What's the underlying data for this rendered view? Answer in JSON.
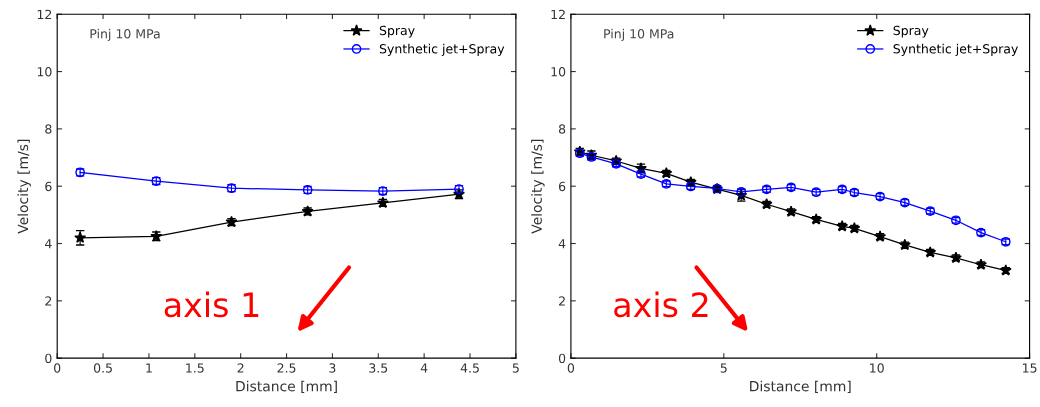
{
  "chart_data": [
    {
      "type": "line",
      "xlabel": "Distance [mm]",
      "ylabel": "Velocity [m/s]",
      "xlim": [
        0,
        5
      ],
      "ylim": [
        0,
        12
      ],
      "xticks": [
        0,
        0.5,
        1,
        1.5,
        2,
        2.5,
        3,
        3.5,
        4,
        4.5,
        5
      ],
      "yticks": [
        0,
        2,
        4,
        6,
        8,
        10,
        12
      ],
      "grid": false,
      "legend": "top right",
      "annotations": [
        "Pinj 10 MPa",
        "axis 1"
      ],
      "x": [
        0.25,
        1.08,
        1.9,
        2.73,
        3.55,
        4.38
      ],
      "series": [
        {
          "name": "Spray",
          "color": "#000000",
          "marker": "star",
          "values": [
            4.2,
            4.25,
            4.75,
            5.12,
            5.42,
            5.72
          ],
          "errors": [
            0.25,
            0.15,
            0.12,
            0.12,
            0.12,
            0.15
          ]
        },
        {
          "name": "Synthetic jet+Spray",
          "color": "#0000ff",
          "marker": "circle",
          "values": [
            6.48,
            6.18,
            5.93,
            5.87,
            5.83,
            5.9
          ],
          "errors": [
            0.12,
            0.12,
            0.12,
            0.12,
            0.12,
            0.12
          ]
        }
      ]
    },
    {
      "type": "line",
      "xlabel": "Distance [mm]",
      "ylabel": "Velocity [m/s]",
      "xlim": [
        0,
        15
      ],
      "ylim": [
        0,
        12
      ],
      "xticks": [
        0,
        5,
        10,
        15
      ],
      "yticks": [
        0,
        2,
        4,
        6,
        8,
        10,
        12
      ],
      "grid": false,
      "legend": "top right",
      "annotations": [
        "Pinj 10 MPa",
        "axis 2"
      ],
      "x": [
        0.29,
        0.67,
        1.48,
        2.29,
        3.12,
        3.92,
        4.78,
        5.57,
        6.4,
        7.2,
        8.02,
        8.87,
        9.27,
        10.11,
        10.92,
        11.75,
        12.59,
        13.41,
        14.22
      ],
      "series": [
        {
          "name": "Spray",
          "color": "#000000",
          "marker": "star",
          "values": [
            7.2,
            7.08,
            6.88,
            6.62,
            6.45,
            6.14,
            5.9,
            5.68,
            5.37,
            5.11,
            4.84,
            4.6,
            4.53,
            4.24,
            3.95,
            3.69,
            3.5,
            3.26,
            3.06
          ],
          "errors": [
            0.12,
            0.15,
            0.1,
            0.15,
            0.1,
            0.1,
            0.1,
            0.2,
            0.1,
            0.1,
            0.1,
            0.1,
            0.1,
            0.1,
            0.1,
            0.1,
            0.1,
            0.1,
            0.1
          ]
        },
        {
          "name": "Synthetic jet+Spray",
          "color": "#0000ff",
          "marker": "circle",
          "values": [
            7.15,
            7.02,
            6.78,
            6.42,
            6.08,
            5.99,
            5.92,
            5.8,
            5.89,
            5.96,
            5.79,
            5.89,
            5.78,
            5.64,
            5.43,
            5.13,
            4.81,
            4.38,
            4.06
          ],
          "errors": [
            0.1,
            0.1,
            0.1,
            0.1,
            0.1,
            0.1,
            0.1,
            0.1,
            0.1,
            0.1,
            0.1,
            0.1,
            0.1,
            0.1,
            0.1,
            0.1,
            0.1,
            0.1,
            0.1
          ]
        }
      ]
    }
  ]
}
